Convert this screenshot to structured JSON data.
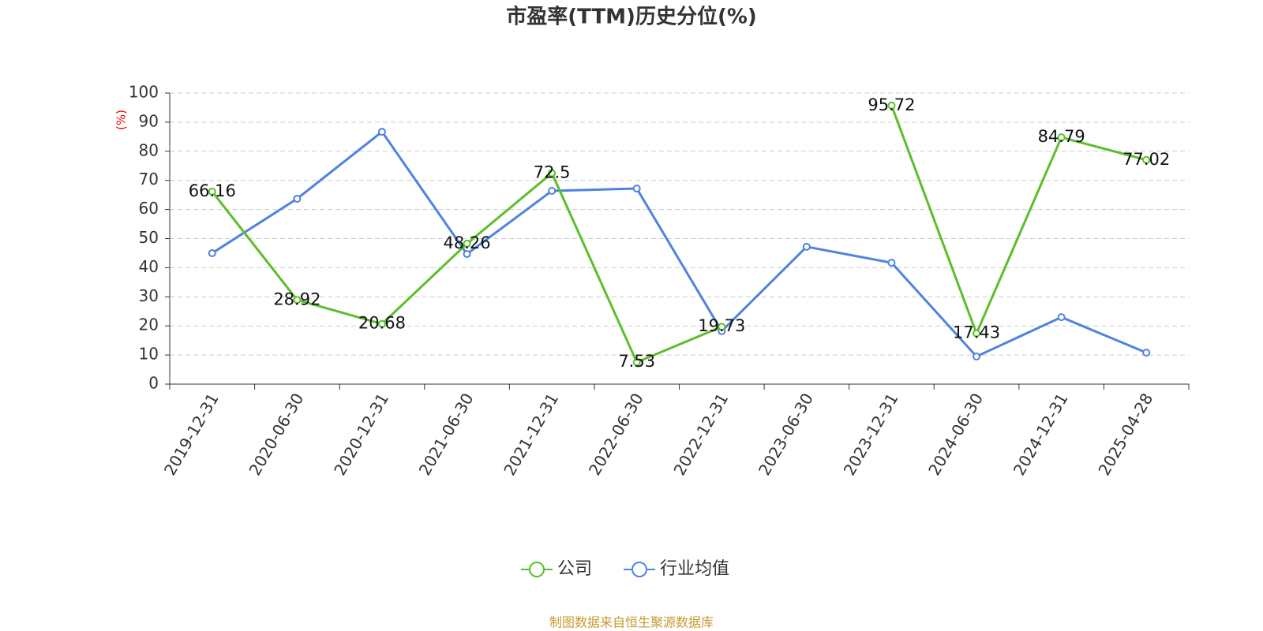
{
  "chart_data": {
    "type": "line",
    "title": "市盈率(TTM)历史分位(%)",
    "y_label": "(%)",
    "source": "制图数据来自恒生聚源数据库",
    "categories": [
      "2019-12-31",
      "2020-06-30",
      "2020-12-31",
      "2021-06-30",
      "2021-12-31",
      "2022-06-30",
      "2022-12-31",
      "2023-06-30",
      "2023-12-31",
      "2024-06-30",
      "2024-12-31",
      "2025-04-28"
    ],
    "series": [
      {
        "name": "公司",
        "color": "#5bbf2a",
        "values": [
          66.16,
          28.92,
          20.68,
          48.26,
          72.5,
          7.53,
          19.73,
          null,
          95.72,
          17.43,
          84.79,
          77.02
        ],
        "show_labels": true
      },
      {
        "name": "行业均值",
        "color": "#4f83dd",
        "values": [
          45,
          63.7,
          86.7,
          44.7,
          66.4,
          67.2,
          18.2,
          47.2,
          41.7,
          9.5,
          23,
          10.8
        ],
        "show_labels": false
      }
    ],
    "ylim": [
      0,
      100
    ],
    "yticks": [
      0,
      10,
      20,
      30,
      40,
      50,
      60,
      70,
      80,
      90,
      100
    ],
    "grid": true
  }
}
